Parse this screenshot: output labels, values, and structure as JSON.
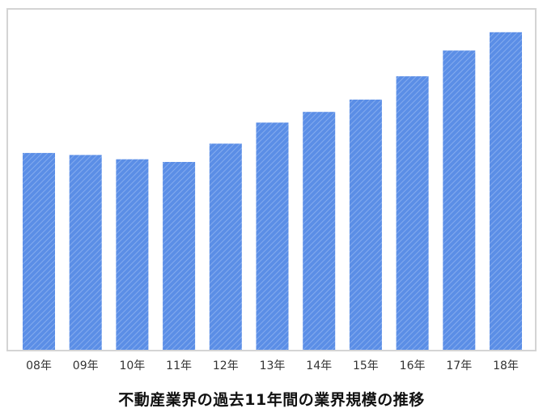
{
  "chart_data": {
    "type": "bar",
    "title": "不動産業界の過去11年間の業界規模の推移",
    "xlabel": "",
    "ylabel": "",
    "categories": [
      "08年",
      "09年",
      "10年",
      "11年",
      "12年",
      "13年",
      "14年",
      "15年",
      "16年",
      "17年",
      "18年"
    ],
    "values": [
      59.0,
      58.4,
      57.1,
      56.3,
      61.8,
      68.1,
      71.3,
      75.0,
      82.0,
      89.7,
      95.2
    ],
    "ylim": [
      0,
      100
    ],
    "grid": false,
    "legend": "none",
    "colors": {
      "bar_fill": "#5b8ee6",
      "bar_hatch": "#8fb3f0",
      "frame": "#d4d4d4",
      "tick_text": "#333333"
    }
  }
}
